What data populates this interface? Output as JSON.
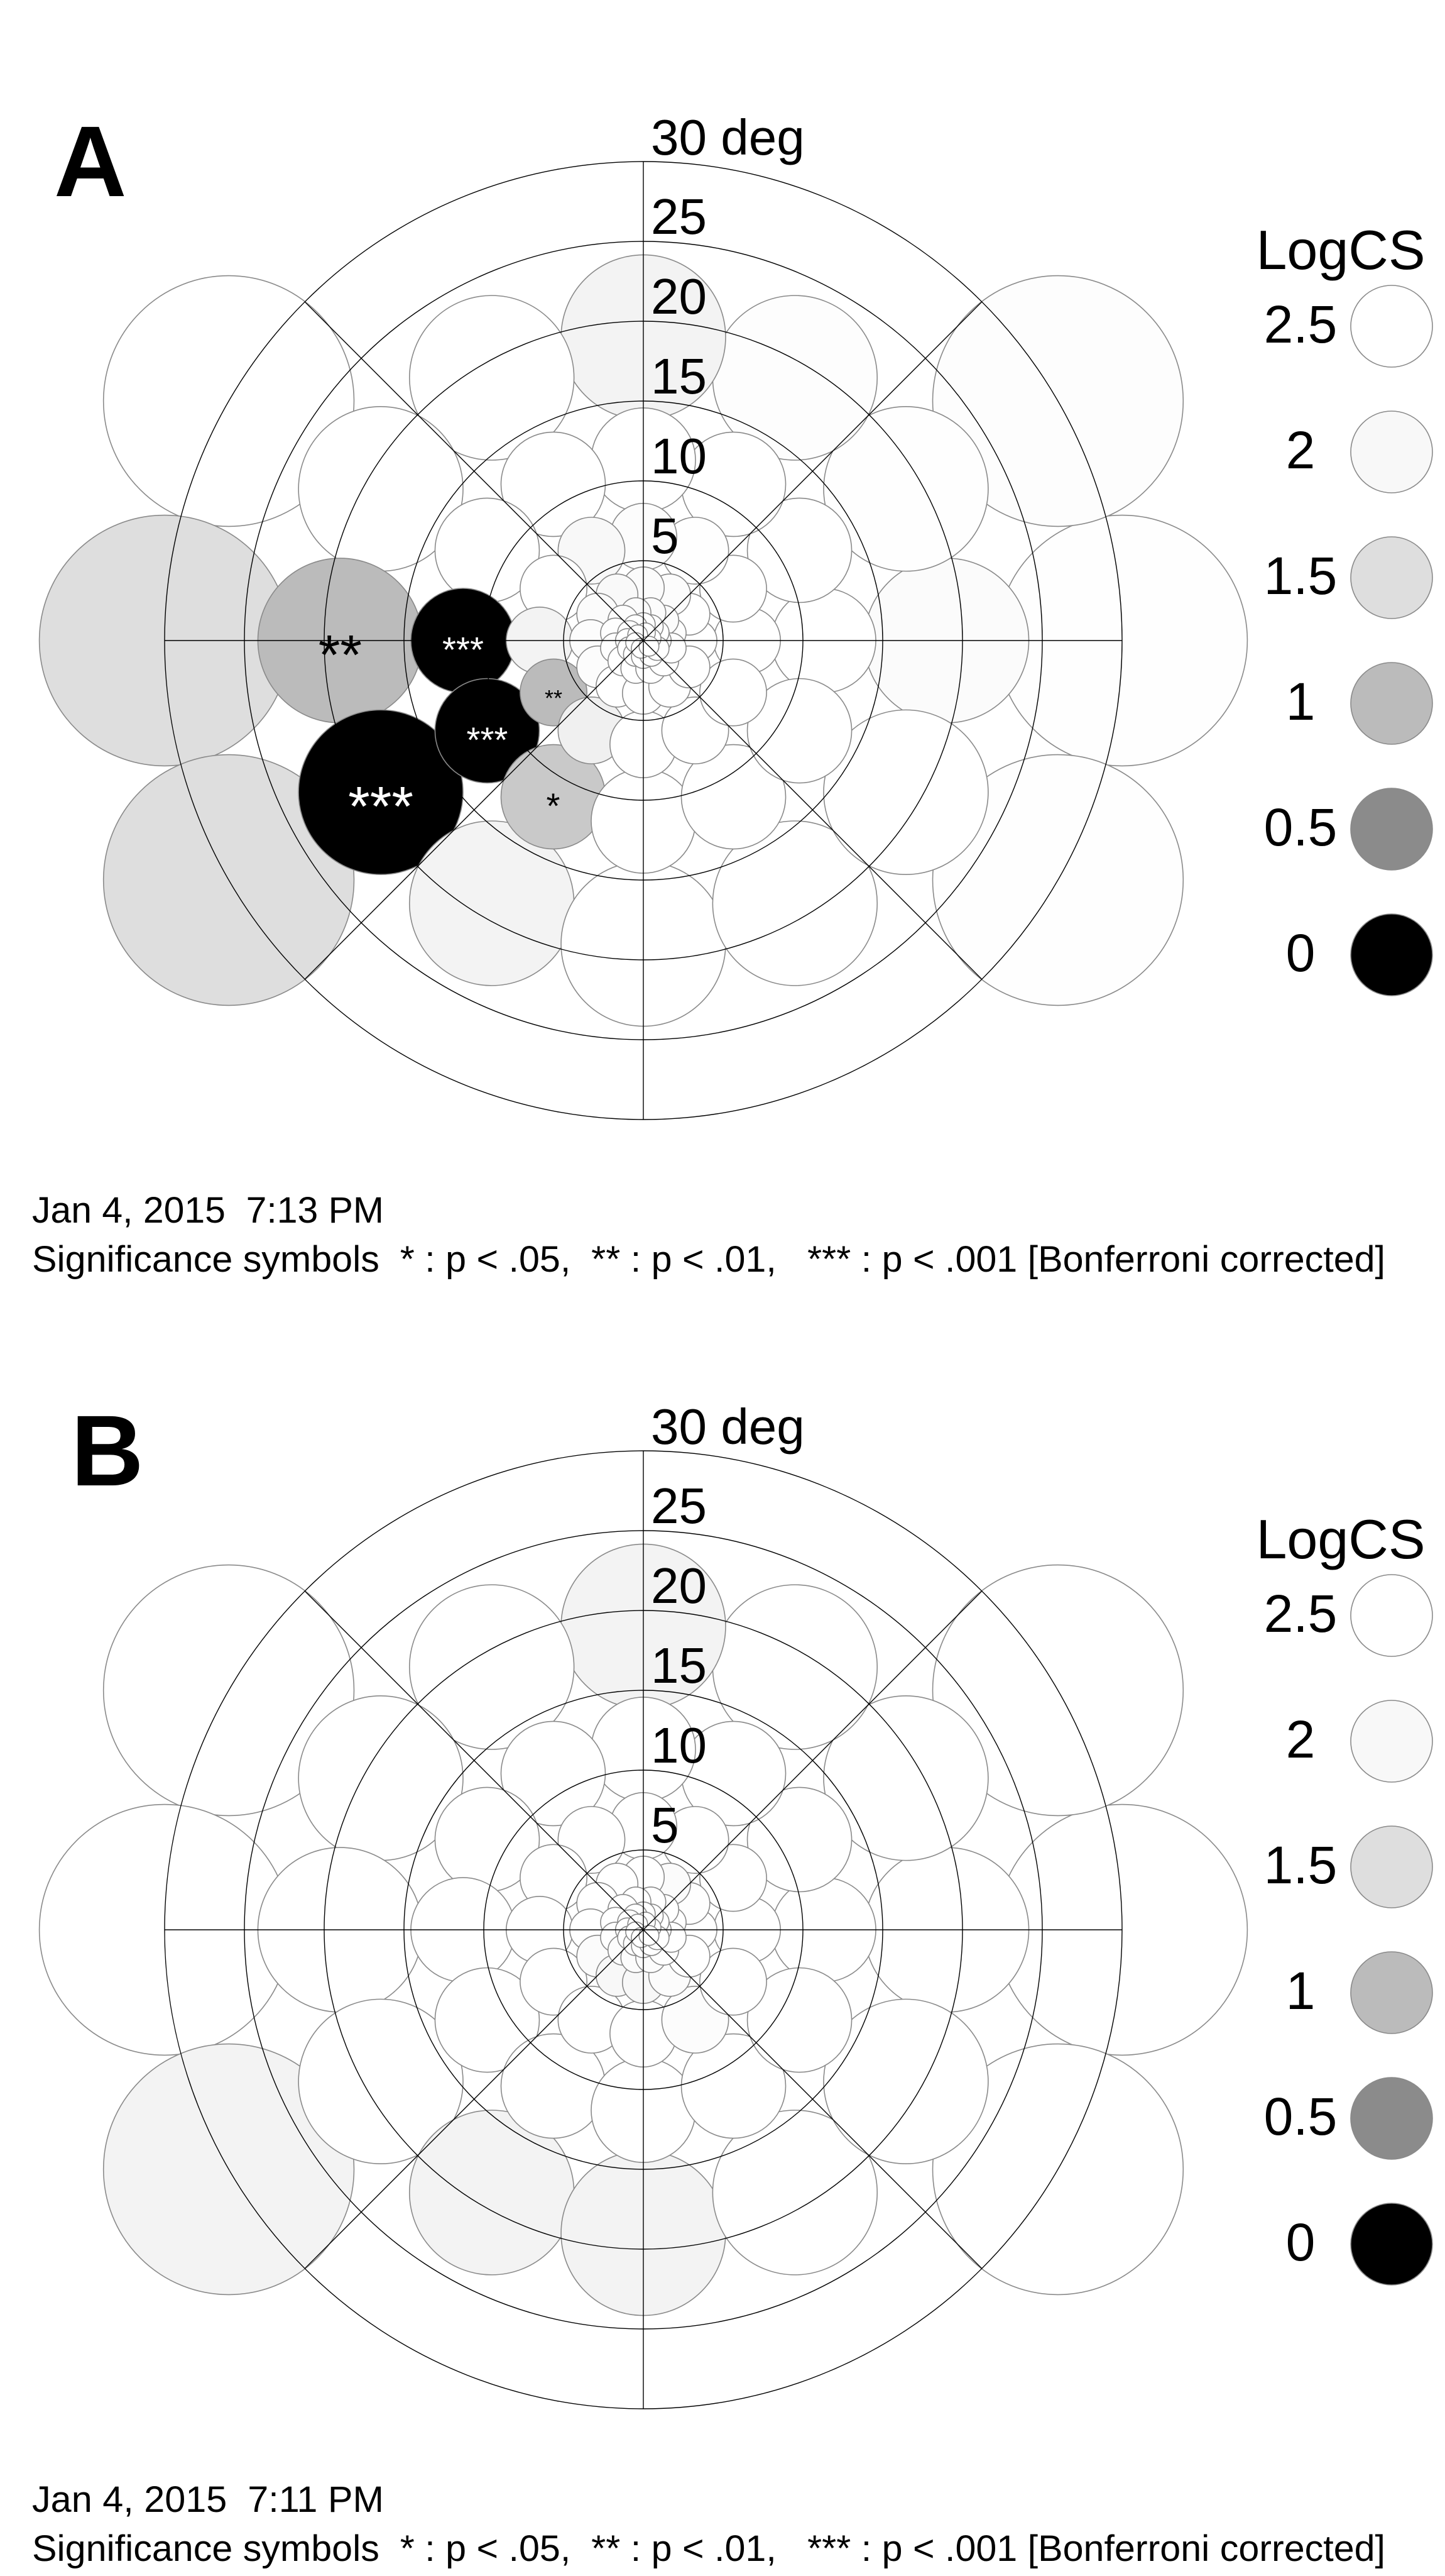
{
  "chart_data": [
    {
      "type": "polar-bubble",
      "panel_label": "A",
      "radial_axis": {
        "unit_label": "30 deg",
        "tick_labels": [
          "5",
          "10",
          "15",
          "20",
          "25"
        ],
        "max": 30
      },
      "date": "Jan 4, 2015  7:13 PM",
      "significance_note": "Significance symbols  * : p < .05,  ** : p < .01,   *** : p < .001 [Bonferroni corrected]",
      "legend": {
        "title": "LogCS",
        "entries": [
          {
            "label": "2.5",
            "value": 2.5,
            "color": "#ffffff"
          },
          {
            "label": "2",
            "value": 2.0,
            "color": "#f8f8f8"
          },
          {
            "label": "1.5",
            "value": 1.5,
            "color": "#dedede"
          },
          {
            "label": "1",
            "value": 1.0,
            "color": "#bbbbbb"
          },
          {
            "label": "0.5",
            "value": 0.5,
            "color": "#8b8b8b"
          },
          {
            "label": "0",
            "value": 0.0,
            "color": "#000000"
          }
        ]
      },
      "rings": [
        {
          "ecc": 30,
          "angles": [
            0,
            30,
            150,
            180,
            210,
            330
          ],
          "logcs": [
            2.4,
            2.35,
            2.5,
            1.5,
            1.5,
            2.45
          ],
          "sig": [
            "",
            "",
            "",
            "",
            "",
            ""
          ]
        },
        {
          "ecc": 19,
          "angles": [
            0,
            30,
            60,
            90,
            120,
            150,
            180,
            210,
            240,
            270,
            300,
            330
          ],
          "logcs": [
            2.2,
            2.4,
            2.35,
            1.9,
            2.5,
            2.5,
            1.0,
            0.0,
            1.9,
            2.5,
            2.5,
            2.5
          ],
          "sig": [
            "",
            "",
            "",
            "",
            "",
            "",
            "**",
            "***",
            "",
            "",
            "",
            ""
          ]
        },
        {
          "ecc": 11.3,
          "angles": [
            0,
            30,
            60,
            90,
            120,
            150,
            180,
            210,
            240,
            270,
            300,
            330
          ],
          "logcs": [
            2.5,
            2.5,
            2.5,
            2.5,
            2.5,
            2.5,
            0.0,
            0.0,
            1.2,
            2.5,
            2.5,
            2.5
          ],
          "sig": [
            "",
            "",
            "",
            "",
            "",
            "",
            "***",
            "***",
            "*",
            "",
            "",
            ""
          ]
        },
        {
          "ecc": 6.5,
          "angles": [
            0,
            30,
            60,
            90,
            120,
            150,
            180,
            210,
            240,
            270,
            300,
            330
          ],
          "logcs": [
            2.5,
            2.5,
            2.4,
            2.3,
            2.0,
            2.5,
            1.9,
            1.0,
            1.85,
            2.5,
            2.5,
            2.5
          ],
          "sig": [
            "",
            "",
            "",
            "",
            "",
            "",
            "",
            "**",
            "",
            "",
            "",
            ""
          ]
        },
        {
          "ecc": 3.3,
          "angles": [
            0,
            30,
            60,
            90,
            120,
            150,
            180,
            210,
            240,
            270,
            300,
            330
          ],
          "logcs": [
            2.5,
            2.5,
            2.3,
            2.2,
            2.1,
            2.2,
            2.3,
            2.3,
            2.5,
            2.5,
            2.5,
            2.5
          ],
          "sig": [
            "",
            "",
            "",
            "",
            "",
            "",
            "",
            "",
            "",
            "",
            "",
            ""
          ]
        },
        {
          "ecc": 1.8,
          "angles": [
            15,
            45,
            75,
            105,
            135,
            165,
            195,
            225,
            255,
            285,
            315,
            345
          ],
          "logcs": [
            2.4,
            2.3,
            2.3,
            2.2,
            2.3,
            2.4,
            2.4,
            2.5,
            2.5,
            2.5,
            2.5,
            2.5
          ],
          "sig": [
            "",
            "",
            "",
            "",
            "",
            "",
            "",
            "",
            "",
            "",
            "",
            ""
          ]
        },
        {
          "ecc": 1.0,
          "angles": [
            0,
            30,
            60,
            90,
            120,
            150,
            180,
            210,
            240,
            270,
            300,
            330
          ],
          "logcs": [
            2.5,
            2.5,
            2.4,
            2.4,
            2.5,
            2.5,
            2.5,
            2.5,
            2.5,
            2.5,
            2.5,
            2.5
          ],
          "sig": [
            "",
            "",
            "",
            "",
            "",
            "",
            "",
            "",
            "",
            "",
            "",
            ""
          ]
        },
        {
          "ecc": 0.5,
          "angles": [
            15,
            75,
            135,
            195,
            255,
            315
          ],
          "logcs": [
            2.5,
            2.5,
            2.5,
            2.5,
            2.5,
            2.5
          ],
          "sig": [
            "",
            "",
            "",
            "",
            "",
            ""
          ]
        }
      ]
    },
    {
      "type": "polar-bubble",
      "panel_label": "B",
      "radial_axis": {
        "unit_label": "30 deg",
        "tick_labels": [
          "5",
          "10",
          "15",
          "20",
          "25"
        ],
        "max": 30
      },
      "date": "Jan 4, 2015  7:11 PM",
      "significance_note": "Significance symbols  * : p < .05,  ** : p < .01,   *** : p < .001 [Bonferroni corrected]",
      "legend": {
        "title": "LogCS",
        "entries": [
          {
            "label": "2.5",
            "value": 2.5,
            "color": "#ffffff"
          },
          {
            "label": "2",
            "value": 2.0,
            "color": "#f8f8f8"
          },
          {
            "label": "1.5",
            "value": 1.5,
            "color": "#dedede"
          },
          {
            "label": "1",
            "value": 1.0,
            "color": "#bbbbbb"
          },
          {
            "label": "0.5",
            "value": 0.5,
            "color": "#8b8b8b"
          },
          {
            "label": "0",
            "value": 0.0,
            "color": "#000000"
          }
        ]
      },
      "rings": [
        {
          "ecc": 30,
          "angles": [
            0,
            30,
            150,
            180,
            210,
            330
          ],
          "logcs": [
            2.5,
            2.5,
            2.5,
            2.5,
            1.9,
            2.5
          ],
          "sig": [
            "",
            "",
            "",
            "",
            "",
            ""
          ]
        },
        {
          "ecc": 19,
          "angles": [
            0,
            30,
            60,
            90,
            120,
            150,
            180,
            210,
            240,
            270,
            300,
            330
          ],
          "logcs": [
            2.5,
            2.5,
            2.5,
            1.9,
            2.5,
            2.5,
            2.5,
            2.5,
            1.9,
            1.9,
            2.5,
            2.5
          ],
          "sig": [
            "",
            "",
            "",
            "",
            "",
            "",
            "",
            "",
            "",
            "",
            "",
            ""
          ]
        },
        {
          "ecc": 11.3,
          "angles": [
            0,
            30,
            60,
            90,
            120,
            150,
            180,
            210,
            240,
            270,
            300,
            330
          ],
          "logcs": [
            2.5,
            2.5,
            2.5,
            2.5,
            2.5,
            2.5,
            2.5,
            2.5,
            2.5,
            2.5,
            2.5,
            2.5
          ],
          "sig": [
            "",
            "",
            "",
            "",
            "",
            "",
            "",
            "",
            "",
            "",
            "",
            ""
          ]
        },
        {
          "ecc": 6.5,
          "angles": [
            0,
            30,
            60,
            90,
            120,
            150,
            180,
            210,
            240,
            270,
            300,
            330
          ],
          "logcs": [
            2.5,
            2.5,
            2.5,
            2.5,
            2.5,
            2.5,
            2.5,
            2.5,
            2.5,
            2.5,
            2.3,
            2.5
          ],
          "sig": [
            "",
            "",
            "",
            "",
            "",
            "",
            "",
            "",
            "",
            "",
            "",
            ""
          ]
        },
        {
          "ecc": 3.3,
          "angles": [
            0,
            30,
            60,
            90,
            120,
            150,
            180,
            210,
            240,
            270,
            300,
            330
          ],
          "logcs": [
            2.5,
            2.4,
            2.2,
            2.5,
            2.5,
            2.5,
            2.5,
            2.2,
            2.0,
            2.0,
            2.3,
            2.5
          ],
          "sig": [
            "",
            "",
            "",
            "",
            "",
            "",
            "",
            "",
            "",
            "",
            "",
            ""
          ]
        },
        {
          "ecc": 1.8,
          "angles": [
            15,
            45,
            75,
            105,
            135,
            165,
            195,
            225,
            255,
            285,
            315,
            345
          ],
          "logcs": [
            2.5,
            2.5,
            2.5,
            2.5,
            2.5,
            2.5,
            2.4,
            2.3,
            2.3,
            2.3,
            2.4,
            2.5
          ],
          "sig": [
            "",
            "",
            "",
            "",
            "",
            "",
            "",
            "",
            "",
            "",
            "",
            ""
          ]
        },
        {
          "ecc": 1.0,
          "angles": [
            0,
            30,
            60,
            90,
            120,
            150,
            180,
            210,
            240,
            270,
            300,
            330
          ],
          "logcs": [
            2.5,
            2.5,
            2.5,
            2.5,
            2.5,
            2.5,
            2.5,
            2.5,
            2.4,
            2.4,
            2.5,
            2.5
          ],
          "sig": [
            "",
            "",
            "",
            "",
            "",
            "",
            "",
            "",
            "",
            "",
            "",
            ""
          ]
        },
        {
          "ecc": 0.5,
          "angles": [
            15,
            75,
            135,
            195,
            255,
            315
          ],
          "logcs": [
            2.5,
            2.5,
            2.5,
            2.5,
            2.5,
            2.5
          ],
          "sig": [
            "",
            "",
            "",
            "",
            "",
            ""
          ]
        }
      ]
    }
  ]
}
